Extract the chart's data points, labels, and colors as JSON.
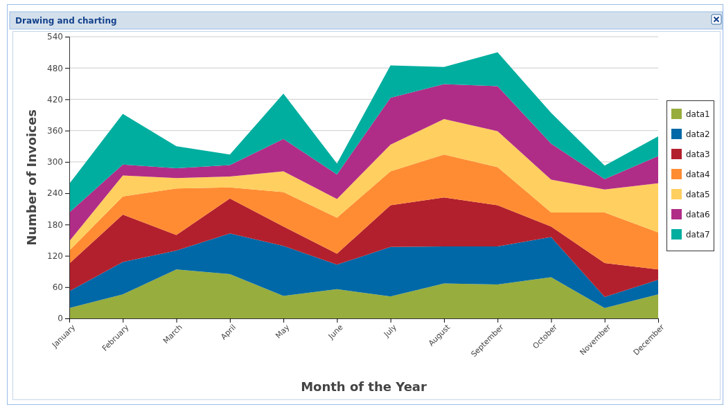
{
  "chart_data": {
    "type": "area",
    "title": "Drawing and charting",
    "xlabel": "Month of the Year",
    "ylabel": "Number of Invoices",
    "categories": [
      "January",
      "February",
      "March",
      "April",
      "May",
      "June",
      "July",
      "August",
      "September",
      "October",
      "November",
      "December"
    ],
    "stacked": true,
    "ylim": [
      0,
      540
    ],
    "yticks": [
      0,
      60,
      120,
      180,
      240,
      300,
      360,
      420,
      480,
      540
    ],
    "grid": "y",
    "legend": "right",
    "series": [
      {
        "name": "data1",
        "color": "#97ad3d",
        "values": [
          20,
          46,
          94,
          85,
          43,
          56,
          42,
          67,
          65,
          79,
          20,
          46
        ]
      },
      {
        "name": "data2",
        "color": "#0068a6",
        "values": [
          32,
          62,
          36,
          78,
          96,
          47,
          95,
          71,
          73,
          77,
          21,
          28
        ]
      },
      {
        "name": "data3",
        "color": "#b3202d",
        "values": [
          53,
          91,
          30,
          67,
          37,
          21,
          80,
          94,
          79,
          20,
          65,
          20
        ]
      },
      {
        "name": "data4",
        "color": "#ff8c33",
        "values": [
          25,
          35,
          89,
          21,
          66,
          69,
          65,
          82,
          73,
          27,
          97,
          71
        ]
      },
      {
        "name": "data5",
        "color": "#ffcf5f",
        "values": [
          18,
          40,
          20,
          21,
          40,
          36,
          51,
          68,
          69,
          63,
          44,
          94
        ]
      },
      {
        "name": "data6",
        "color": "#b02d87",
        "values": [
          55,
          21,
          19,
          22,
          62,
          47,
          90,
          67,
          86,
          69,
          20,
          52
        ]
      },
      {
        "name": "data7",
        "color": "#00ae9f",
        "values": [
          55,
          97,
          42,
          20,
          87,
          21,
          62,
          33,
          65,
          59,
          26,
          38
        ]
      }
    ]
  }
}
